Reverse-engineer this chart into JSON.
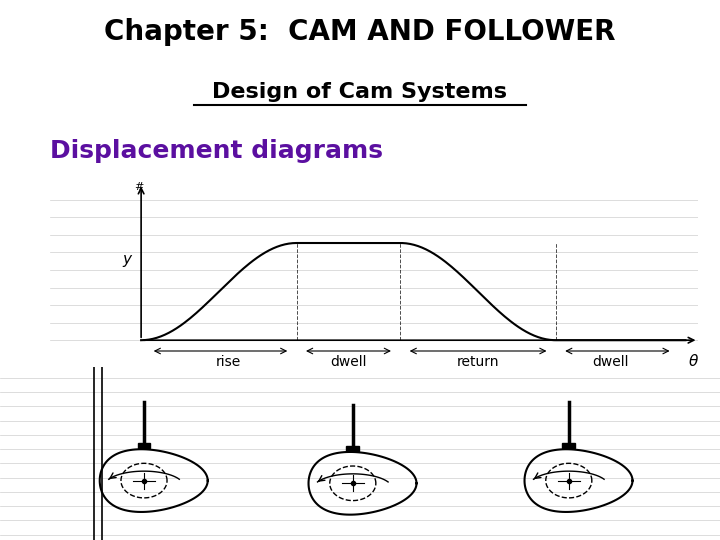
{
  "title": "Chapter 5:  CAM AND FOLLOWER",
  "title_bg": "#b0a0c8",
  "title_color": "#000000",
  "subtitle": "Design of Cam Systems",
  "subtitle_color": "#000000",
  "section_label": "Displacement diagrams",
  "section_color": "#5b0fa0",
  "bg_color": "#ffffff",
  "diagram_labels": [
    "rise",
    "dwell",
    "return",
    "dwell",
    "θ"
  ],
  "axis_label_y": "y"
}
